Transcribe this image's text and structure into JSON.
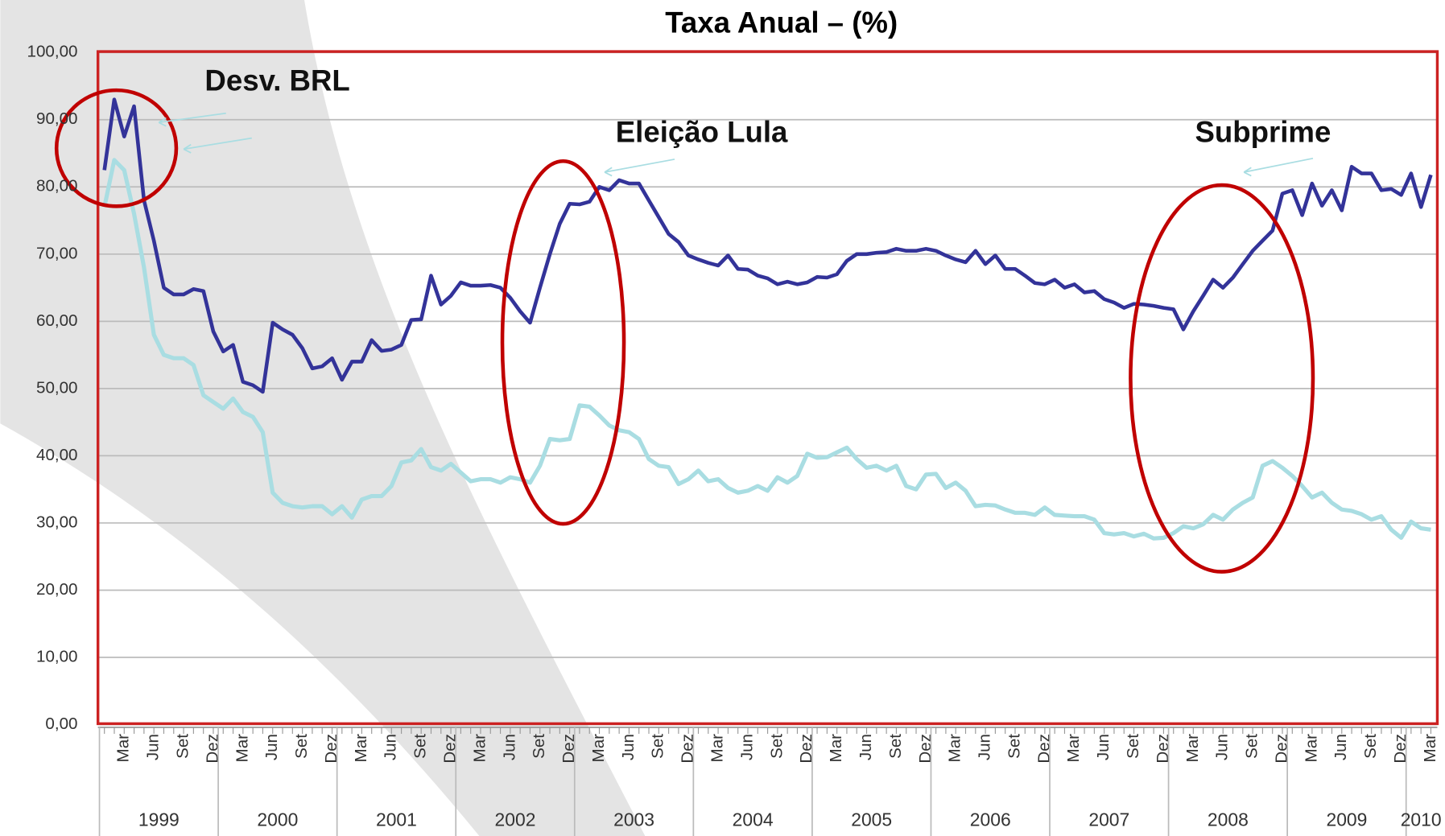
{
  "chart_data": {
    "type": "line",
    "title": "Taxa Anual  –  (%)",
    "categories": [
      null,
      null,
      "Mar",
      null,
      null,
      "Jun",
      null,
      null,
      "Set",
      null,
      null,
      "Dez",
      null,
      null,
      "Mar",
      null,
      null,
      "Jun",
      null,
      null,
      "Set",
      null,
      null,
      "Dez",
      null,
      null,
      "Mar",
      null,
      null,
      "Jun",
      null,
      null,
      "Set",
      null,
      null,
      "Dez",
      null,
      null,
      "Mar",
      null,
      null,
      "Jun",
      null,
      null,
      "Set",
      null,
      null,
      "Dez",
      null,
      null,
      "Mar",
      null,
      null,
      "Jun",
      null,
      null,
      "Set",
      null,
      null,
      "Dez",
      null,
      null,
      "Mar",
      null,
      null,
      "Jun",
      null,
      null,
      "Set",
      null,
      null,
      "Dez",
      null,
      null,
      "Mar",
      null,
      null,
      "Jun",
      null,
      null,
      "Set",
      null,
      null,
      "Dez",
      null,
      null,
      "Mar",
      null,
      null,
      "Jun",
      null,
      null,
      "Set",
      null,
      null,
      "Dez",
      null,
      null,
      "Mar",
      null,
      null,
      "Jun",
      null,
      null,
      "Set",
      null,
      null,
      "Dez",
      null,
      null,
      "Mar",
      null,
      null,
      "Jun",
      null,
      null,
      "Set",
      null,
      null,
      "Dez",
      null,
      null,
      "Mar",
      null,
      null,
      "Jun",
      null,
      null,
      "Set",
      null,
      null,
      "Dez",
      null,
      null,
      "Mar"
    ],
    "years": [
      "1999",
      "2000",
      "2001",
      "2002",
      "2003",
      "2004",
      "2005",
      "2006",
      "2007",
      "2008",
      "2009",
      "2010"
    ],
    "series": [
      {
        "color": "#333399",
        "values": [
          82.5,
          93,
          87.5,
          92,
          78,
          72,
          65,
          64,
          64,
          64.8,
          64.5,
          58.5,
          55.5,
          56.5,
          51,
          50.5,
          49.5,
          59.8,
          58.8,
          58,
          56,
          53,
          53.3,
          54.5,
          51.3,
          54,
          54,
          57.2,
          55.6,
          55.8,
          56.5,
          60.2,
          60.3,
          66.8,
          62.5,
          63.8,
          65.8,
          65.3,
          65.3,
          65.4,
          65,
          63.5,
          61.5,
          59.8,
          65,
          70,
          74.5,
          77.5,
          77.4,
          77.8,
          80,
          79.5,
          81,
          80.5,
          80.5,
          78,
          75.5,
          73,
          71.8,
          69.8,
          69.2,
          68.7,
          68.3,
          69.8,
          67.8,
          67.7,
          66.8,
          66.4,
          65.5,
          65.9,
          65.5,
          65.8,
          66.6,
          66.5,
          67,
          69,
          70,
          70,
          70.2,
          70.3,
          70.8,
          70.5,
          70.5,
          70.8,
          70.5,
          69.8,
          69.2,
          68.8,
          70.5,
          68.5,
          69.8,
          67.8,
          67.8,
          66.8,
          65.7,
          65.5,
          66.2,
          65,
          65.5,
          64.3,
          64.5,
          63.3,
          62.8,
          62,
          62.6,
          62.5,
          62.3,
          62,
          61.8,
          58.8,
          61.5,
          63.8,
          66.2,
          65,
          66.5,
          68.5,
          70.5,
          72,
          73.5,
          79,
          79.5,
          75.8,
          80.5,
          77.2,
          79.5,
          76.5,
          83,
          82,
          82,
          79.5,
          79.7,
          78.8,
          82,
          77,
          81.8
        ]
      },
      {
        "color": "#a9dde2",
        "values": [
          77,
          84,
          82.5,
          76,
          68,
          58,
          55,
          54.5,
          54.5,
          53.5,
          49,
          48,
          47,
          48.5,
          46.5,
          45.8,
          43.5,
          34.5,
          33,
          32.5,
          32.3,
          32.5,
          32.5,
          31.3,
          32.5,
          30.8,
          33.5,
          34,
          34,
          35.5,
          39,
          39.3,
          41,
          38.3,
          37.8,
          38.8,
          37.5,
          36.2,
          36.5,
          36.5,
          36,
          36.8,
          36.5,
          36,
          38.5,
          42.5,
          42.3,
          42.5,
          47.5,
          47.3,
          46,
          44.5,
          43.8,
          43.5,
          42.5,
          39.5,
          38.5,
          38.3,
          35.8,
          36.5,
          37.8,
          36.2,
          36.5,
          35.2,
          34.5,
          34.8,
          35.5,
          34.8,
          36.8,
          36,
          37,
          40.3,
          39.7,
          39.8,
          40.5,
          41.2,
          39.5,
          38.2,
          38.5,
          37.8,
          38.5,
          35.5,
          35,
          37.2,
          37.3,
          35.2,
          36,
          34.8,
          32.5,
          32.7,
          32.6,
          32,
          31.5,
          31.5,
          31.2,
          32.3,
          31.2,
          31.1,
          31,
          31,
          30.5,
          28.5,
          28.3,
          28.5,
          28,
          28.4,
          27.7,
          27.8,
          28.5,
          29.5,
          29.2,
          29.8,
          31.2,
          30.5,
          32,
          33,
          33.8,
          38.5,
          39.2,
          38.2,
          37,
          35.5,
          33.8,
          34.5,
          33,
          32,
          31.8,
          31.3,
          30.5,
          31,
          29,
          27.8,
          30.2,
          29.2,
          29
        ]
      }
    ],
    "ylim": [
      0,
      100
    ],
    "yticks": [
      {
        "value": 0,
        "label": "0,00"
      },
      {
        "value": 10,
        "label": "10,00"
      },
      {
        "value": 20,
        "label": "20,00"
      },
      {
        "value": 30,
        "label": "30,00"
      },
      {
        "value": 40,
        "label": "40,00"
      },
      {
        "value": 50,
        "label": "50,00"
      },
      {
        "value": 60,
        "label": "60,00"
      },
      {
        "value": 70,
        "label": "70,00"
      },
      {
        "value": 80,
        "label": "80,00"
      },
      {
        "value": 90,
        "label": "90,00"
      },
      {
        "value": 100,
        "label": "100,00"
      }
    ],
    "grid": true,
    "annotations": [
      "Desv. BRL",
      "Eleição Lula",
      "Subprime"
    ]
  }
}
